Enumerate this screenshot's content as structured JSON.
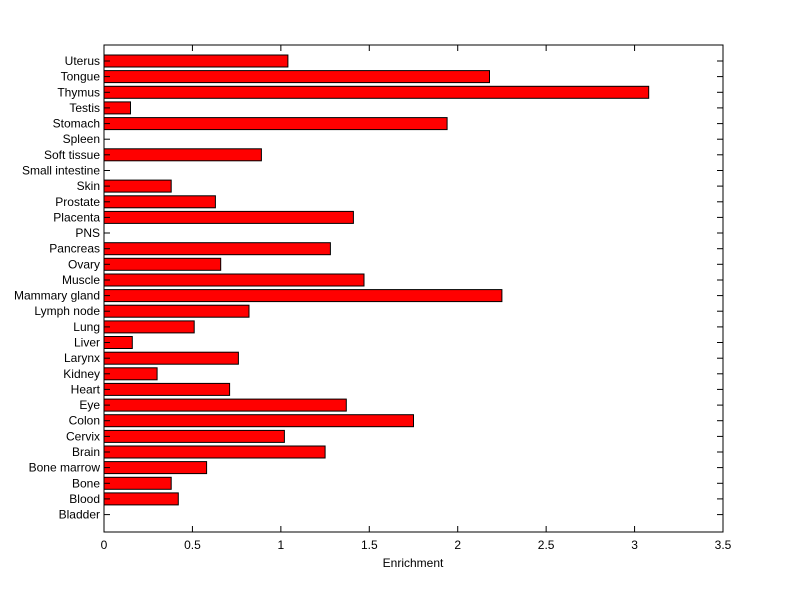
{
  "chart_data": {
    "type": "bar",
    "orientation": "horizontal",
    "title": "",
    "xlabel": "Enrichment",
    "ylabel": "",
    "xlim": [
      0,
      3.5
    ],
    "xticks": [
      "0",
      "0.5",
      "1",
      "1.5",
      "2",
      "2.5",
      "3",
      "3.5"
    ],
    "bar_color": "#ff0000",
    "bar_edge_color": "#000000",
    "grid": false,
    "categories": [
      "Uterus",
      "Tongue",
      "Thymus",
      "Testis",
      "Stomach",
      "Spleen",
      "Soft tissue",
      "Small intestine",
      "Skin",
      "Prostate",
      "Placenta",
      "PNS",
      "Pancreas",
      "Ovary",
      "Muscle",
      "Mammary gland",
      "Lymph node",
      "Lung",
      "Liver",
      "Larynx",
      "Kidney",
      "Heart",
      "Eye",
      "Colon",
      "Cervix",
      "Brain",
      "Bone marrow",
      "Bone",
      "Blood",
      "Bladder"
    ],
    "values": [
      1.04,
      2.18,
      3.08,
      0.15,
      1.94,
      0,
      0.89,
      0,
      0.38,
      0.63,
      1.41,
      0,
      1.28,
      0.66,
      1.47,
      2.25,
      0.82,
      0.51,
      0.16,
      0.76,
      0.3,
      0.71,
      1.37,
      1.75,
      1.02,
      1.25,
      0.58,
      0.38,
      0.42,
      0
    ]
  }
}
